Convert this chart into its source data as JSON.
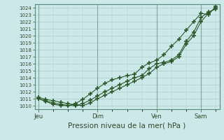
{
  "title": "",
  "xlabel": "Pression niveau de la mer( hPa )",
  "ylabel": "",
  "bg_color": "#cce8e8",
  "plot_bg_color": "#cce8e8",
  "grid_color": "#aacccc",
  "line_color": "#2d5a2d",
  "ylim": [
    1009.5,
    1024.5
  ],
  "yticks": [
    1010,
    1011,
    1012,
    1013,
    1014,
    1015,
    1016,
    1017,
    1018,
    1019,
    1020,
    1021,
    1022,
    1023,
    1024
  ],
  "xtick_labels": [
    "Jeu",
    "Dim",
    "Ven",
    "Sam"
  ],
  "xtick_positions": [
    0,
    8,
    16,
    22
  ],
  "x_total": 24,
  "xlim": [
    -0.5,
    24.5
  ],
  "vlines": [
    0,
    8,
    16,
    22
  ],
  "series_x": [
    0,
    1,
    2,
    3,
    4,
    5,
    6,
    7,
    8,
    9,
    10,
    11,
    12,
    13,
    14,
    15,
    16,
    17,
    18,
    19,
    20,
    21,
    22,
    23,
    24
  ],
  "values1": [
    1011.0,
    1010.7,
    1010.4,
    1010.2,
    1010.05,
    1010.0,
    1010.3,
    1010.8,
    1011.4,
    1012.0,
    1012.5,
    1013.0,
    1013.5,
    1014.0,
    1014.3,
    1015.3,
    1016.0,
    1016.2,
    1016.5,
    1017.3,
    1019.2,
    1020.5,
    1022.6,
    1023.4,
    1023.8
  ],
  "values2": [
    1011.0,
    1010.6,
    1010.2,
    1010.05,
    1010.0,
    1010.3,
    1010.9,
    1011.7,
    1012.5,
    1013.2,
    1013.7,
    1014.0,
    1014.3,
    1014.5,
    1015.5,
    1016.1,
    1016.5,
    1017.3,
    1018.5,
    1019.5,
    1020.8,
    1022.0,
    1023.2,
    1023.0,
    1024.2
  ],
  "values3": [
    1011.2,
    1010.9,
    1010.7,
    1010.5,
    1010.3,
    1010.1,
    1010.0,
    1010.4,
    1011.0,
    1011.5,
    1012.0,
    1012.5,
    1013.0,
    1013.5,
    1014.0,
    1014.6,
    1015.5,
    1016.0,
    1016.3,
    1017.0,
    1018.8,
    1020.0,
    1022.0,
    1023.2,
    1024.0
  ]
}
